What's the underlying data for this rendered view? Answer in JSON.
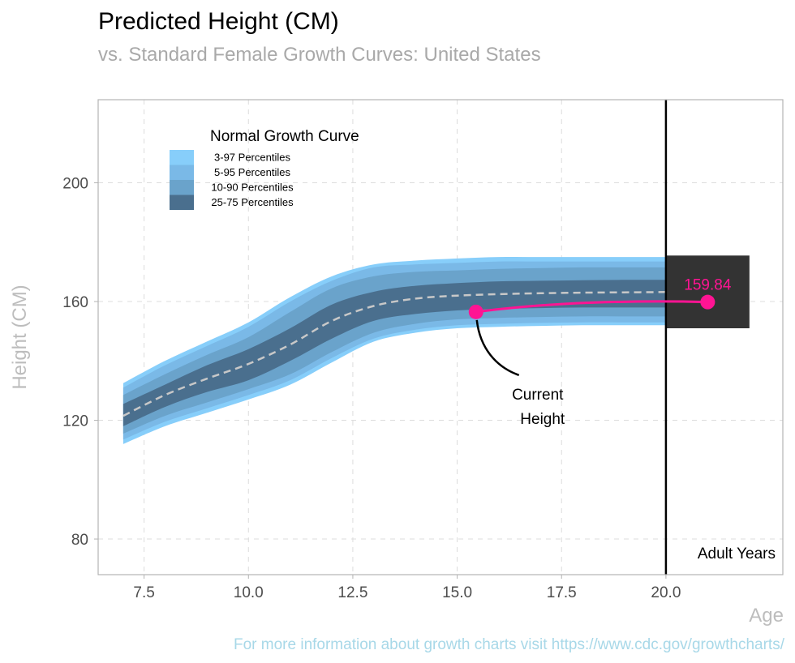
{
  "chart_data": {
    "type": "area",
    "title": "Predicted Height (CM)",
    "subtitle": "vs. Standard Female Growth Curves: United States",
    "xlabel": "Age",
    "ylabel": "Height (CM)",
    "caption": "For more information about growth charts visit https://www.cdc.gov/growthcharts/",
    "xlim": [
      6.4,
      22.8
    ],
    "ylim": [
      68,
      228
    ],
    "x_ticks": [
      7.5,
      10.0,
      12.5,
      15.0,
      17.5,
      20.0
    ],
    "x_tick_labels": [
      "7.5",
      "10.0",
      "12.5",
      "15.0",
      "17.5",
      "20.0"
    ],
    "y_ticks": [
      80,
      120,
      160,
      200
    ],
    "y_tick_labels": [
      "80",
      "120",
      "160",
      "200"
    ],
    "grid": true,
    "legend": {
      "title": "Normal Growth Curve",
      "placement": "top-left",
      "entries": [
        "3-97 Percentiles",
        "5-95 Percentiles",
        "10-90 Percentiles",
        "25-75 Percentiles"
      ]
    },
    "age": [
      7,
      8,
      9,
      10,
      11,
      12,
      13,
      14,
      15,
      16,
      17,
      18,
      19,
      20
    ],
    "bands": [
      {
        "label": "3-97 Percentiles",
        "color": "#87cefa",
        "lower": [
          112,
          118,
          122.5,
          127,
          132,
          139.5,
          146.5,
          149.5,
          151,
          151.5,
          151.8,
          152,
          152,
          152
        ],
        "upper": [
          132.5,
          140,
          146.5,
          153,
          161.5,
          168.5,
          172.5,
          173.8,
          174.5,
          175,
          175,
          175,
          175,
          175
        ]
      },
      {
        "label": "5-95 Percentiles",
        "color": "#7ab9e7",
        "lower": [
          113.5,
          119.5,
          124,
          128.5,
          133.5,
          141,
          147.5,
          150.5,
          152,
          152.5,
          152.8,
          153,
          153,
          153
        ],
        "upper": [
          131,
          138.5,
          145,
          151.5,
          160,
          167,
          171.5,
          172.5,
          173,
          173.5,
          173.5,
          173.5,
          173.5,
          173.5
        ]
      },
      {
        "label": "10-90 Percentiles",
        "color": "#6aa3cb",
        "lower": [
          115.5,
          121.5,
          126,
          130.5,
          135.5,
          143,
          149.5,
          152.5,
          154,
          154.5,
          154.8,
          155,
          155,
          155
        ],
        "upper": [
          128.5,
          135.5,
          142,
          148,
          156.5,
          164.5,
          168.5,
          170,
          170.5,
          171,
          171.3,
          171.5,
          171.5,
          171.5
        ]
      },
      {
        "label": "25-75 Percentiles",
        "color": "#4a6f8e",
        "lower": [
          118,
          124.5,
          129.5,
          133.5,
          140,
          147.5,
          153.5,
          155.8,
          157,
          157.5,
          157.8,
          158,
          158,
          158
        ],
        "upper": [
          125.5,
          132,
          138.5,
          144,
          151,
          159,
          163.3,
          165.3,
          166.2,
          166.8,
          167,
          167.2,
          167.3,
          167.3
        ]
      }
    ],
    "median": {
      "color": "#c8c8c8",
      "values": [
        121.5,
        128.5,
        134,
        139,
        145.5,
        153.5,
        158.5,
        161,
        162,
        162.5,
        162.8,
        163,
        163.1,
        163.2
      ]
    },
    "adult_line_x": 20.0,
    "adult_label": "Adult Years",
    "adult_box": {
      "x": [
        20.0,
        22.0
      ],
      "y": [
        151,
        175.5
      ],
      "color": "#333333"
    },
    "prediction": {
      "color": "#ff1493",
      "current": {
        "x": 15.45,
        "y": 156.5
      },
      "predicted": {
        "x": 21.0,
        "y": 159.84
      },
      "label": "159.84"
    },
    "current_annotation": {
      "lines": [
        "Current",
        "Height"
      ]
    }
  }
}
